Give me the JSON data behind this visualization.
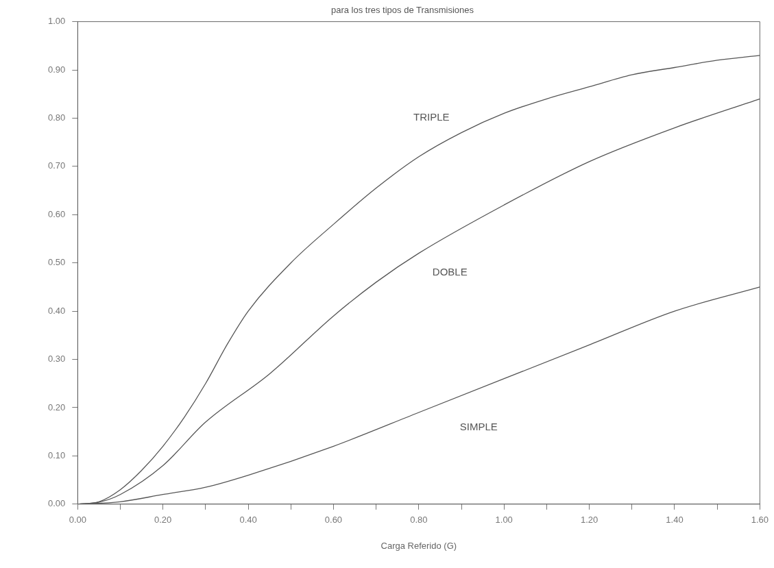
{
  "chart_data": {
    "type": "line",
    "title": "para los tres tipos de Transmisiones",
    "xlabel": "Carga Referido (G)",
    "xlim": [
      0,
      1.6
    ],
    "ylim": [
      0,
      1
    ],
    "xticks": [
      {
        "value": 0,
        "label": "0.00"
      },
      {
        "value": 0.1,
        "label": null
      },
      {
        "value": 0.2,
        "label": "0.20"
      },
      {
        "value": 0.3,
        "label": null
      },
      {
        "value": 0.4,
        "label": "0.40"
      },
      {
        "value": 0.5,
        "label": null
      },
      {
        "value": 0.6,
        "label": "0.60"
      },
      {
        "value": 0.7,
        "label": null
      },
      {
        "value": 0.8,
        "label": "0.80"
      },
      {
        "value": 0.9,
        "label": null
      },
      {
        "value": 1.0,
        "label": "1.00"
      },
      {
        "value": 1.1,
        "label": null
      },
      {
        "value": 1.2,
        "label": "1.20"
      },
      {
        "value": 1.3,
        "label": null
      },
      {
        "value": 1.4,
        "label": "1.40"
      },
      {
        "value": 1.5,
        "label": null
      },
      {
        "value": 1.6,
        "label": "1.60"
      }
    ],
    "yticks": [
      {
        "value": 0,
        "label": "0.00"
      },
      {
        "value": 0.1,
        "label": "0.10"
      },
      {
        "value": 0.2,
        "label": "0.20"
      },
      {
        "value": 0.3,
        "label": "0.30"
      },
      {
        "value": 0.4,
        "label": "0.40"
      },
      {
        "value": 0.5,
        "label": "0.50"
      },
      {
        "value": 0.6,
        "label": "0.60"
      },
      {
        "value": 0.7,
        "label": "0.70"
      },
      {
        "value": 0.8,
        "label": "0.80"
      },
      {
        "value": 0.9,
        "label": "0.90"
      },
      {
        "value": 1.0,
        "label": "1.00"
      }
    ],
    "grid": false,
    "legend": false,
    "marker": "none",
    "line_style": "solid",
    "series": [
      {
        "name": "TRIPLE",
        "color": "#555555",
        "x": [
          0,
          0.05,
          0.1,
          0.15,
          0.2,
          0.25,
          0.3,
          0.35,
          0.4,
          0.5,
          0.6,
          0.7,
          0.8,
          0.9,
          1.0,
          1.1,
          1.2,
          1.3,
          1.4,
          1.5,
          1.6
        ],
        "values": [
          0,
          0.005,
          0.03,
          0.07,
          0.12,
          0.18,
          0.25,
          0.33,
          0.4,
          0.5,
          0.58,
          0.655,
          0.72,
          0.77,
          0.81,
          0.84,
          0.865,
          0.89,
          0.905,
          0.92,
          0.93
        ]
      },
      {
        "name": "DOBLE",
        "color": "#555555",
        "x": [
          0,
          0.05,
          0.1,
          0.2,
          0.3,
          0.45,
          0.6,
          0.7,
          0.8,
          1.0,
          1.2,
          1.4,
          1.6
        ],
        "values": [
          0,
          0.004,
          0.02,
          0.08,
          0.17,
          0.27,
          0.39,
          0.46,
          0.52,
          0.62,
          0.71,
          0.78,
          0.84
        ]
      },
      {
        "name": "SIMPLE",
        "color": "#555555",
        "x": [
          0,
          0.1,
          0.2,
          0.3,
          0.4,
          0.6,
          0.8,
          1.0,
          1.2,
          1.4,
          1.6
        ],
        "values": [
          0,
          0.005,
          0.02,
          0.035,
          0.06,
          0.12,
          0.19,
          0.26,
          0.33,
          0.4,
          0.45
        ]
      }
    ]
  }
}
